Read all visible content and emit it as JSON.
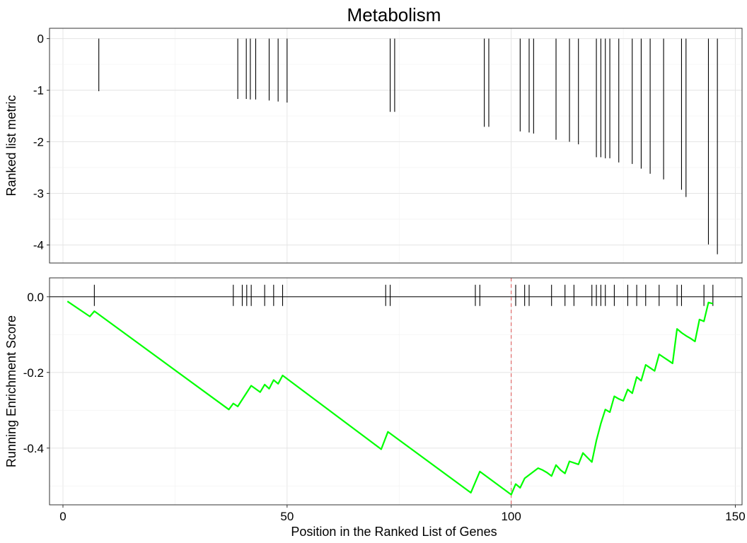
{
  "chart_data": {
    "type": "line",
    "title": "Metabolism",
    "xlabel": "Position in the Ranked List of Genes",
    "xlim": [
      -3,
      151.5
    ],
    "xticks": [
      0,
      50,
      100,
      150
    ],
    "panels": [
      {
        "id": "ranked-metric",
        "type": "bar",
        "ylabel": "Ranked list metric",
        "ylim": [
          -4.35,
          0.2
        ],
        "yticks": [
          0,
          -1,
          -2,
          -3,
          -4
        ],
        "hits": [
          {
            "x": 8,
            "y": -1.02
          },
          {
            "x": 39,
            "y": -1.17
          },
          {
            "x": 40.9,
            "y": -1.17
          },
          {
            "x": 41.8,
            "y": -1.18
          },
          {
            "x": 43,
            "y": -1.18
          },
          {
            "x": 46,
            "y": -1.2
          },
          {
            "x": 48,
            "y": -1.22
          },
          {
            "x": 50,
            "y": -1.24
          },
          {
            "x": 73,
            "y": -1.42
          },
          {
            "x": 74,
            "y": -1.42
          },
          {
            "x": 94,
            "y": -1.71
          },
          {
            "x": 95,
            "y": -1.71
          },
          {
            "x": 102,
            "y": -1.8
          },
          {
            "x": 104,
            "y": -1.82
          },
          {
            "x": 105,
            "y": -1.84
          },
          {
            "x": 110,
            "y": -1.96
          },
          {
            "x": 113,
            "y": -2.0
          },
          {
            "x": 115,
            "y": -2.05
          },
          {
            "x": 119,
            "y": -2.3
          },
          {
            "x": 120,
            "y": -2.3
          },
          {
            "x": 121,
            "y": -2.32
          },
          {
            "x": 122,
            "y": -2.32
          },
          {
            "x": 124,
            "y": -2.4
          },
          {
            "x": 127,
            "y": -2.43
          },
          {
            "x": 129,
            "y": -2.52
          },
          {
            "x": 131,
            "y": -2.62
          },
          {
            "x": 134,
            "y": -2.73
          },
          {
            "x": 138,
            "y": -2.93
          },
          {
            "x": 139,
            "y": -3.07
          },
          {
            "x": 144,
            "y": -3.99
          },
          {
            "x": 146,
            "y": -4.18
          }
        ]
      },
      {
        "id": "running-es",
        "type": "line",
        "ylabel": "Running Enrichment Score",
        "ylim": [
          -0.55,
          0.05
        ],
        "yticks": [
          0.0,
          -0.2,
          -0.4
        ],
        "hit_positions": [
          7,
          38,
          40,
          41,
          42,
          45,
          47,
          49,
          72,
          73,
          92,
          93,
          101,
          103,
          104,
          109,
          112,
          114,
          118,
          119,
          120,
          121,
          123,
          126,
          128,
          130,
          133,
          137,
          138,
          143,
          145
        ],
        "es_line": {
          "color": "#00ff00",
          "x": [
            1,
            6,
            7,
            37,
            38,
            39,
            42,
            44,
            45,
            46,
            47,
            48,
            49,
            71,
            72.5,
            91,
            93,
            100,
            101,
            102,
            103,
            106,
            107,
            108,
            109,
            110,
            111,
            112,
            113,
            115,
            116,
            117,
            118,
            119,
            120,
            121,
            122,
            123,
            124,
            125,
            126,
            127,
            128,
            129,
            130,
            131,
            132,
            133,
            134,
            135,
            136,
            137,
            138,
            139,
            140,
            141,
            142,
            143,
            144,
            145
          ],
          "y": [
            -0.012,
            -0.052,
            -0.038,
            -0.298,
            -0.282,
            -0.29,
            -0.235,
            -0.252,
            -0.232,
            -0.243,
            -0.22,
            -0.23,
            -0.208,
            -0.403,
            -0.357,
            -0.518,
            -0.462,
            -0.523,
            -0.495,
            -0.505,
            -0.48,
            -0.453,
            -0.458,
            -0.465,
            -0.474,
            -0.445,
            -0.458,
            -0.467,
            -0.435,
            -0.443,
            -0.413,
            -0.425,
            -0.437,
            -0.38,
            -0.335,
            -0.298,
            -0.305,
            -0.263,
            -0.27,
            -0.275,
            -0.245,
            -0.255,
            -0.212,
            -0.222,
            -0.18,
            -0.188,
            -0.196,
            -0.152,
            -0.16,
            -0.168,
            -0.176,
            -0.085,
            -0.095,
            -0.103,
            -0.11,
            -0.118,
            -0.06,
            -0.065,
            -0.015,
            -0.018
          ]
        },
        "vline": {
          "x": 100,
          "color": "#e06060",
          "style": "dashed"
        },
        "hline": {
          "y": 0
        }
      }
    ]
  }
}
